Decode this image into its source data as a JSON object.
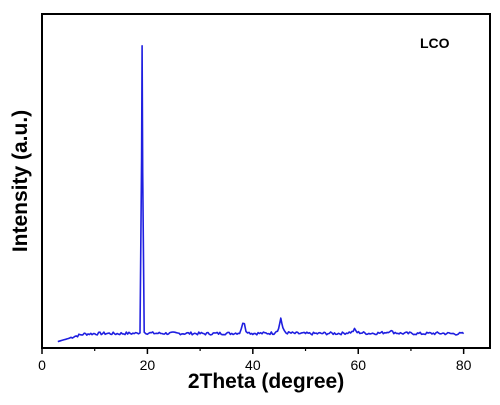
{
  "chart_data": {
    "type": "line",
    "title": "",
    "xlabel": "2Theta (degree)",
    "ylabel": "Intensity (a.u.)",
    "xlim": [
      0,
      85
    ],
    "ylim": [
      0,
      105
    ],
    "x_ticks": [
      0,
      20,
      40,
      60,
      80
    ],
    "x_tick_labels": [
      "0",
      "20",
      "40",
      "60",
      "80"
    ],
    "y_ticks_labeled": false,
    "grid": false,
    "legend_text": "LCO",
    "legend_position": "top-right",
    "series": [
      {
        "name": "LCO",
        "color": "#1f1fe0",
        "x": [
          3,
          4,
          5,
          6,
          7,
          8,
          10,
          12,
          14,
          16,
          18,
          18.6,
          18.9,
          19.0,
          19.1,
          19.4,
          20,
          22,
          25,
          28,
          31,
          34,
          36,
          37.5,
          38.1,
          38.4,
          38.7,
          39.3,
          40,
          42,
          44,
          44.9,
          45.3,
          45.7,
          46.3,
          48,
          51,
          54,
          57,
          58.8,
          59.3,
          59.8,
          62,
          64,
          65.5,
          66,
          66.5,
          68,
          70,
          72,
          74,
          76,
          78,
          80
        ],
        "y": [
          2.0,
          2.5,
          3.0,
          3.6,
          4.0,
          4.4,
          4.5,
          4.6,
          4.5,
          4.6,
          4.6,
          5.0,
          60.0,
          95.0,
          55.0,
          5.0,
          4.7,
          4.6,
          4.6,
          4.6,
          4.5,
          4.6,
          4.6,
          4.8,
          7.5,
          8.0,
          5.5,
          4.8,
          4.6,
          4.6,
          4.7,
          6.0,
          9.5,
          6.0,
          4.8,
          4.6,
          4.5,
          4.6,
          4.6,
          5.0,
          5.8,
          4.9,
          4.6,
          4.7,
          5.0,
          5.5,
          5.0,
          4.6,
          4.6,
          4.5,
          4.6,
          4.6,
          4.5,
          4.5
        ]
      }
    ]
  }
}
